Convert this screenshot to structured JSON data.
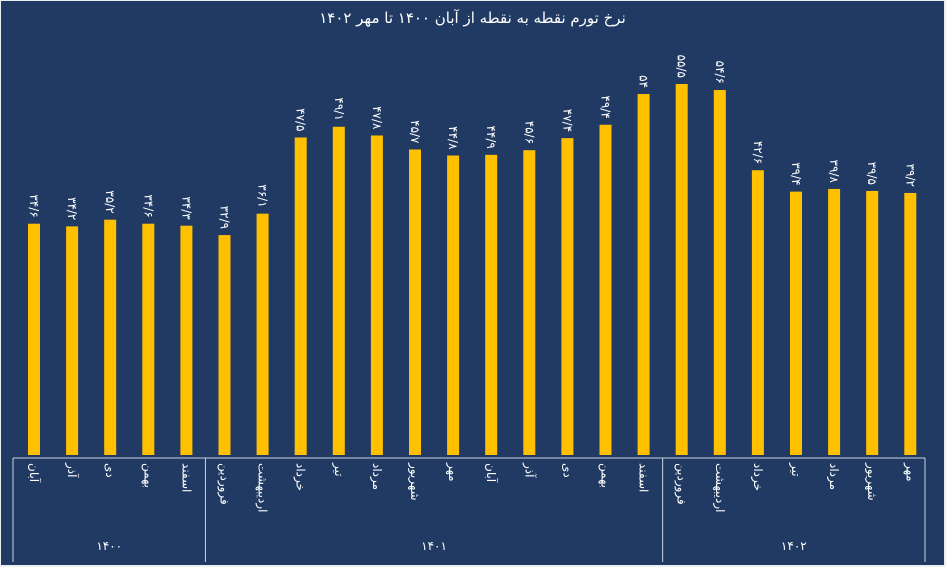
{
  "chart_data": {
    "type": "bar",
    "title": "نرخ تورم نقطه به نقطه از آبان ۱۴۰۰ تا مهر ۱۴۰۲",
    "xlabel": "",
    "ylabel": "",
    "ylim": [
      0,
      55.5
    ],
    "grid": false,
    "bar_color": "#ffc000",
    "background_color": "#213a63",
    "categories": [
      "آبان",
      "آذر",
      "دی",
      "بهمن",
      "اسفند",
      "فروردین",
      "اردیبهشت",
      "خرداد",
      "تیر",
      "مرداد",
      "شهریور",
      "مهر",
      "آبان",
      "آذر",
      "دی",
      "بهمن",
      "اسفند",
      "فروردین",
      "اردیبهشت",
      "خرداد",
      "تیر",
      "مرداد",
      "شهریور",
      "مهر"
    ],
    "values": [
      34.6,
      34.2,
      35.2,
      34.6,
      34.3,
      32.9,
      36.1,
      47.5,
      49.1,
      47.8,
      45.7,
      44.8,
      44.9,
      45.6,
      47.4,
      49.4,
      54,
      55.5,
      54.6,
      42.6,
      39.4,
      39.8,
      39.5,
      39.2
    ],
    "data_labels": [
      "۳۴/۶",
      "۳۴/۲",
      "۳۵/۲",
      "۳۴/۶",
      "۳۴/۳",
      "۳۲/۹",
      "۳۶/۱",
      "۴۷/۵",
      "۴۹/۱",
      "۴۷/۸",
      "۴۵/۷",
      "۴۴/۸",
      "۴۴/۹",
      "۴۵/۶",
      "۴۷/۴",
      "۴۹/۴",
      "۵۴",
      "۵۵/۵",
      "۵۴/۶",
      "۴۲/۶",
      "۳۹/۴",
      "۳۹/۸",
      "۳۹/۵",
      "۳۹/۲"
    ],
    "groups": [
      {
        "label": "۱۴۰۰",
        "count": 5
      },
      {
        "label": "۱۴۰۱",
        "count": 12
      },
      {
        "label": "۱۴۰۲",
        "count": 7
      }
    ]
  }
}
